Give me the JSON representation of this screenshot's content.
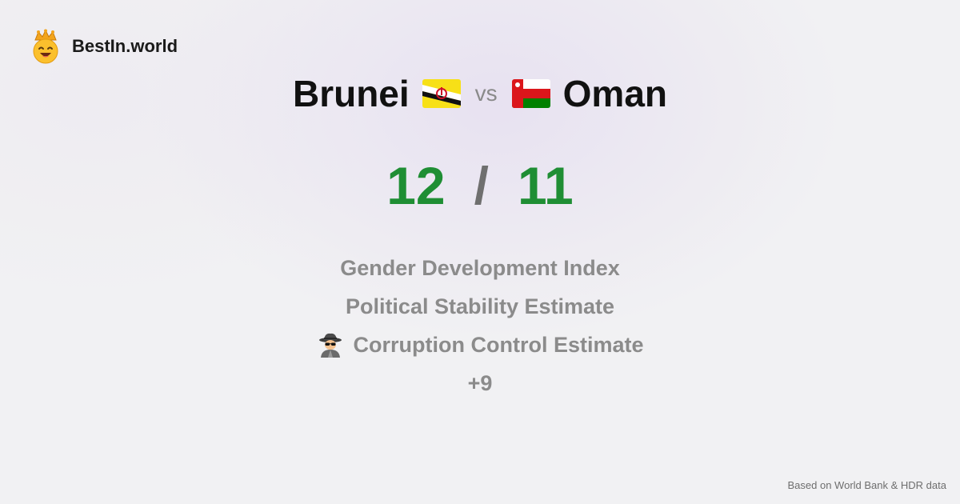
{
  "logo": {
    "text": "BestIn.world",
    "icon": "crown-smiley-icon"
  },
  "comparison": {
    "left_country": "Brunei",
    "right_country": "Oman",
    "vs_label": "vs",
    "left_flag_icon": "brunei-flag-icon",
    "right_flag_icon": "oman-flag-icon"
  },
  "score": {
    "left": "12",
    "separator": "/",
    "right": "11"
  },
  "metrics": [
    {
      "label": "Gender Development Index",
      "icon": ""
    },
    {
      "label": "Political Stability Estimate",
      "icon": ""
    },
    {
      "label": "Corruption Control Estimate",
      "icon": "spy-icon"
    }
  ],
  "more_label": "+9",
  "footer": {
    "source": "Based on World Bank & HDR data"
  },
  "colors": {
    "score": "#1f8e34",
    "muted_text": "#8b8b8b",
    "brunei_yellow": "#f7e017",
    "oman_red": "#db161b",
    "oman_green": "#008000"
  }
}
